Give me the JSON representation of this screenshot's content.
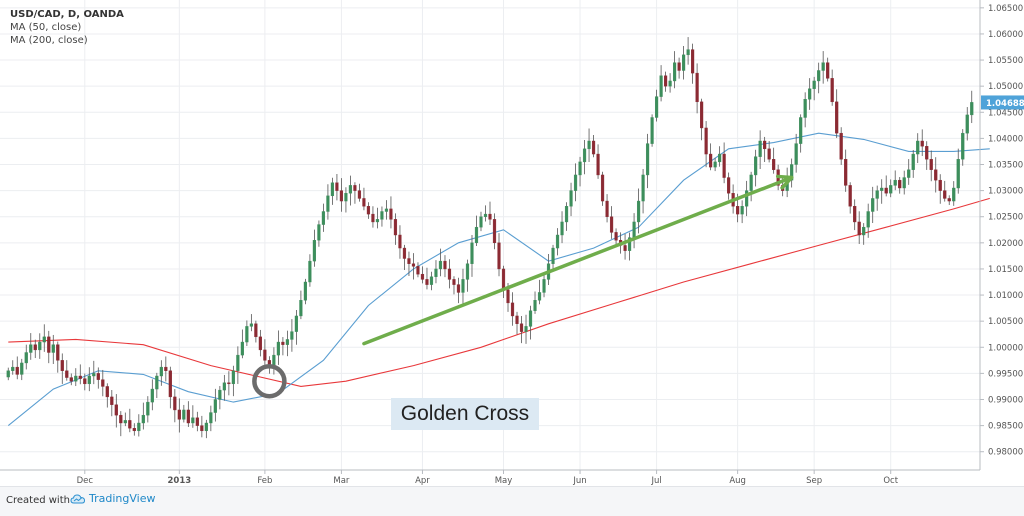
{
  "legend": {
    "symbol": "USD/CAD, D, OANDA",
    "ma50": "MA (50, close)",
    "ma200": "MA (200, close)"
  },
  "annotation": "Golden Cross",
  "footer": {
    "created_with": "Created with",
    "brand": "TradingView"
  },
  "colors": {
    "up": "#3d8e5c",
    "down": "#8b2a33",
    "ma50": "#5a9ed1",
    "ma200": "#e8383b",
    "trend": "#6fad4b",
    "circle": "#6b6b6b",
    "last_price_bg": "#4fa3d9"
  },
  "chart_data": {
    "type": "candlestick",
    "x_tick_labels": [
      "Dec",
      "2013",
      "Feb",
      "Mar",
      "Apr",
      "May",
      "Jun",
      "Jul",
      "Aug",
      "Sep",
      "Oct"
    ],
    "x_tick_index": [
      17,
      38,
      57,
      74,
      92,
      110,
      127,
      144,
      162,
      179,
      196
    ],
    "y_ticks": [
      0.98,
      0.985,
      0.99,
      0.995,
      1.0,
      1.005,
      1.01,
      1.015,
      1.02,
      1.025,
      1.03,
      1.035,
      1.04,
      1.045,
      1.05,
      1.055,
      1.06,
      1.065
    ],
    "y_tick_labels": [
      "0.98000",
      "0.98500",
      "0.99000",
      "0.99500",
      "1.00000",
      "1.00500",
      "1.01000",
      "1.01500",
      "1.02000",
      "1.02500",
      "1.03000",
      "1.03500",
      "1.04000",
      "1.04500",
      "1.05000",
      "1.05500",
      "1.06000",
      "1.06500"
    ],
    "ylim": [
      0.9765,
      1.0665
    ],
    "grid": true,
    "last_price": 1.04688,
    "last_price_label": "1.04688",
    "closes": [
      0.9955,
      0.9962,
      0.9948,
      0.997,
      0.999,
      1.0005,
      0.9995,
      1.001,
      1.002,
      0.999,
      1.0005,
      0.9975,
      0.9955,
      0.9942,
      0.9935,
      0.9945,
      0.994,
      0.993,
      0.9945,
      0.995,
      0.9938,
      0.9925,
      0.9905,
      0.989,
      0.987,
      0.9855,
      0.986,
      0.9845,
      0.984,
      0.9855,
      0.987,
      0.9895,
      0.992,
      0.9945,
      0.9962,
      0.9955,
      0.9905,
      0.988,
      0.9862,
      0.988,
      0.9855,
      0.9865,
      0.985,
      0.984,
      0.9855,
      0.9875,
      0.99,
      0.9918,
      0.9932,
      0.993,
      0.9955,
      0.9985,
      1.001,
      1.004,
      1.0045,
      1.002,
      0.9995,
      0.9975,
      0.9965,
      0.9985,
      1.001,
      1.0005,
      1.0015,
      1.003,
      1.006,
      1.009,
      1.0125,
      1.0165,
      1.0205,
      1.0235,
      1.026,
      1.029,
      1.0315,
      1.03,
      1.028,
      1.0295,
      1.031,
      1.03,
      1.0285,
      1.027,
      1.0255,
      1.024,
      1.0245,
      1.026,
      1.0265,
      1.0245,
      1.0215,
      1.019,
      1.017,
      1.016,
      1.0155,
      1.014,
      1.013,
      1.012,
      1.0135,
      1.015,
      1.0165,
      1.015,
      1.013,
      1.012,
      1.0105,
      1.013,
      1.016,
      1.02,
      1.023,
      1.025,
      1.0255,
      1.0245,
      1.02,
      1.015,
      1.011,
      1.0085,
      1.006,
      1.0045,
      1.003,
      1.004,
      1.007,
      1.009,
      1.0105,
      1.013,
      1.016,
      1.019,
      1.0215,
      1.024,
      1.027,
      1.03,
      1.033,
      1.0355,
      1.038,
      1.0395,
      1.037,
      1.033,
      1.028,
      1.025,
      1.022,
      1.0205,
      1.0195,
      1.0185,
      1.021,
      1.024,
      1.028,
      1.033,
      1.039,
      1.044,
      1.048,
      1.052,
      1.05,
      1.051,
      1.0545,
      1.053,
      1.056,
      1.057,
      1.0525,
      1.047,
      1.042,
      1.037,
      1.0345,
      1.0355,
      1.037,
      1.0325,
      1.0295,
      1.027,
      1.0255,
      1.027,
      1.03,
      1.033,
      1.0365,
      1.0395,
      1.038,
      1.036,
      1.034,
      1.031,
      1.03,
      1.032,
      1.035,
      1.039,
      1.044,
      1.0475,
      1.0495,
      1.051,
      1.053,
      1.0545,
      1.0515,
      1.047,
      1.041,
      1.036,
      1.031,
      1.027,
      1.024,
      1.0215,
      1.023,
      1.026,
      1.0285,
      1.03,
      1.0305,
      1.0295,
      1.031,
      1.032,
      1.0305,
      1.0325,
      1.034,
      1.037,
      1.0395,
      1.0385,
      1.036,
      1.034,
      1.032,
      1.03,
      1.0285,
      1.028,
      1.0305,
      1.036,
      1.041,
      1.0445,
      1.0469
    ],
    "series": [
      {
        "name": "MA (50, close)",
        "x": [
          0,
          10,
          20,
          30,
          40,
          50,
          60,
          70,
          80,
          90,
          100,
          110,
          120,
          130,
          140,
          150,
          160,
          170,
          180,
          190,
          200,
          210,
          218
        ],
        "values": [
          0.985,
          0.992,
          0.9955,
          0.9948,
          0.9915,
          0.9895,
          0.9912,
          0.9975,
          1.008,
          1.015,
          1.02,
          1.0225,
          1.0165,
          1.019,
          1.023,
          1.032,
          1.038,
          1.0392,
          1.041,
          1.0398,
          1.0375,
          1.0375,
          1.038
        ]
      },
      {
        "name": "MA (200, close)",
        "x": [
          0,
          15,
          30,
          45,
          55,
          65,
          75,
          90,
          105,
          120,
          135,
          150,
          165,
          180,
          195,
          210,
          218
        ],
        "values": [
          1.001,
          1.0015,
          1.0005,
          0.9965,
          0.9945,
          0.9925,
          0.9935,
          0.9965,
          1.0,
          1.0045,
          1.0085,
          1.0125,
          1.016,
          1.0195,
          1.023,
          1.0265,
          1.0285
        ]
      }
    ],
    "trend_line": {
      "x": [
        79,
        174
      ],
      "values": [
        1.0007,
        1.0325
      ]
    },
    "circle_marker": {
      "x": 58,
      "value": 0.9935
    }
  }
}
